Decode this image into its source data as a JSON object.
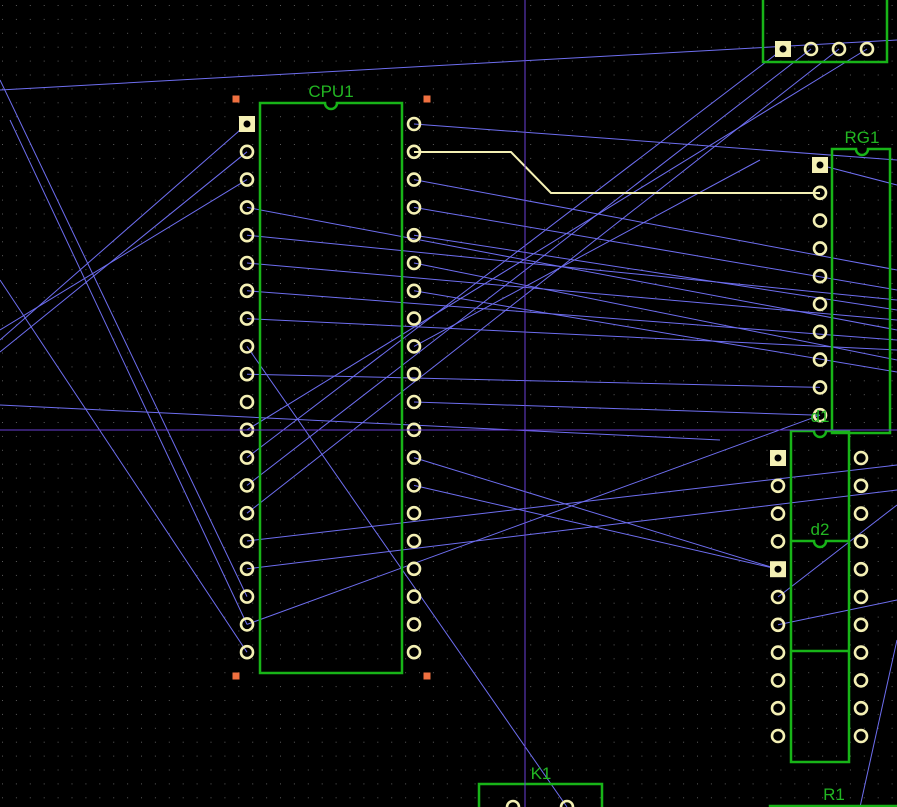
{
  "colors": {
    "background": "#000000",
    "grid": "#5a5a5a",
    "silkscreen": "#18b418",
    "pad": "#f4f0b4",
    "ratsnest": "#6e6ef0",
    "trace": "#f4f0b4",
    "crosshair": "#6a3fd8",
    "corner_marker": "#f07040"
  },
  "components": [
    {
      "designator": "CPU1"
    },
    {
      "designator": "RG1"
    },
    {
      "designator": "d1"
    },
    {
      "designator": "d2"
    },
    {
      "designator": "K1"
    },
    {
      "designator": "R1"
    }
  ]
}
